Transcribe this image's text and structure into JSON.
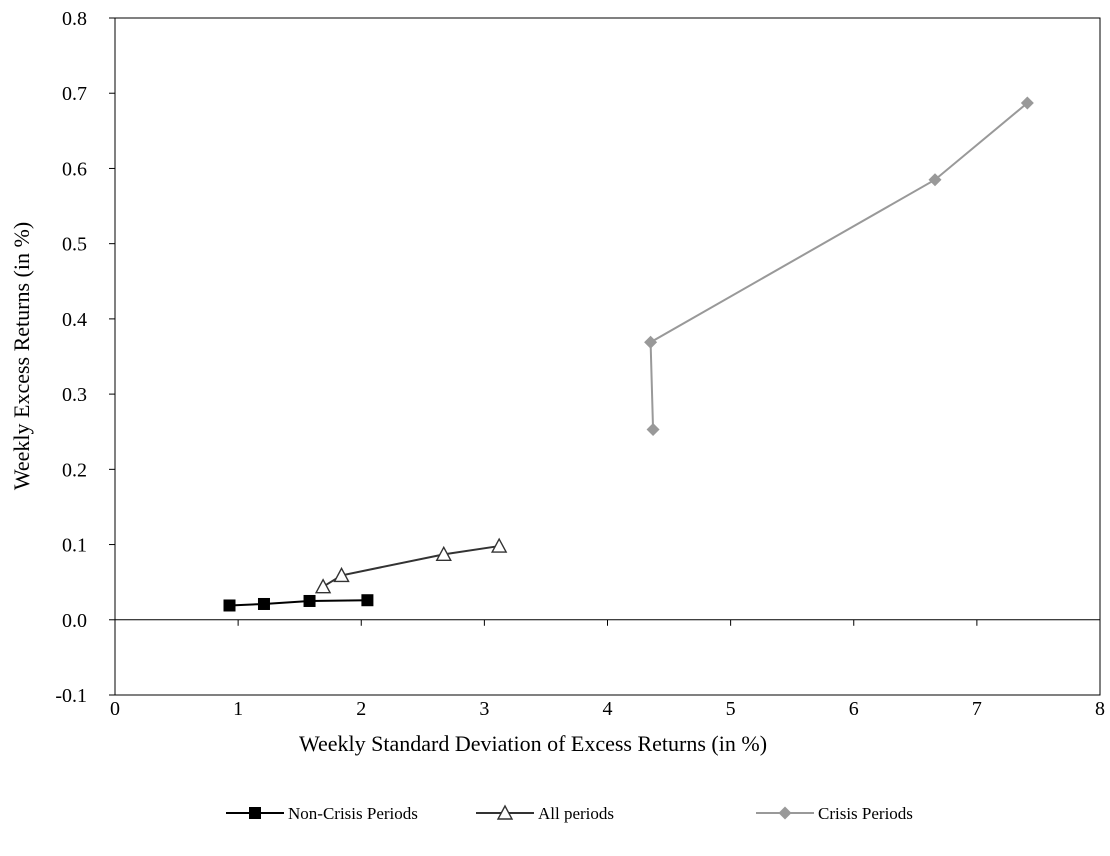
{
  "chart_data": {
    "type": "line",
    "title": "",
    "xlabel": "Weekly Standard Deviation of Excess Returns (in %)",
    "ylabel": "Weekly Excess Returns (in %)",
    "xlim": [
      0,
      8
    ],
    "ylim": [
      -0.1,
      0.8
    ],
    "x_ticks": [
      "0",
      "1",
      "2",
      "3",
      "4",
      "5",
      "6",
      "7",
      "8"
    ],
    "y_ticks": [
      "-0.1",
      "0.0",
      "0.1",
      "0.2",
      "0.3",
      "0.4",
      "0.5",
      "0.6",
      "0.7",
      "0.8"
    ],
    "grid": false,
    "legend_position": "bottom",
    "series": [
      {
        "name": "Non-Crisis Periods",
        "color": "#000000",
        "marker": "square",
        "points": [
          [
            0.93,
            0.019
          ],
          [
            1.21,
            0.021
          ],
          [
            1.58,
            0.025
          ],
          [
            2.05,
            0.026
          ]
        ]
      },
      {
        "name": "All periods",
        "color": "#333333",
        "marker": "triangle-open",
        "points": [
          [
            1.69,
            0.044
          ],
          [
            1.84,
            0.059
          ],
          [
            2.67,
            0.087
          ],
          [
            3.12,
            0.098
          ]
        ]
      },
      {
        "name": "Crisis Periods",
        "color": "#999999",
        "marker": "diamond",
        "points": [
          [
            4.37,
            0.253
          ],
          [
            4.35,
            0.369
          ],
          [
            6.66,
            0.585
          ],
          [
            7.41,
            0.687
          ]
        ]
      }
    ]
  }
}
